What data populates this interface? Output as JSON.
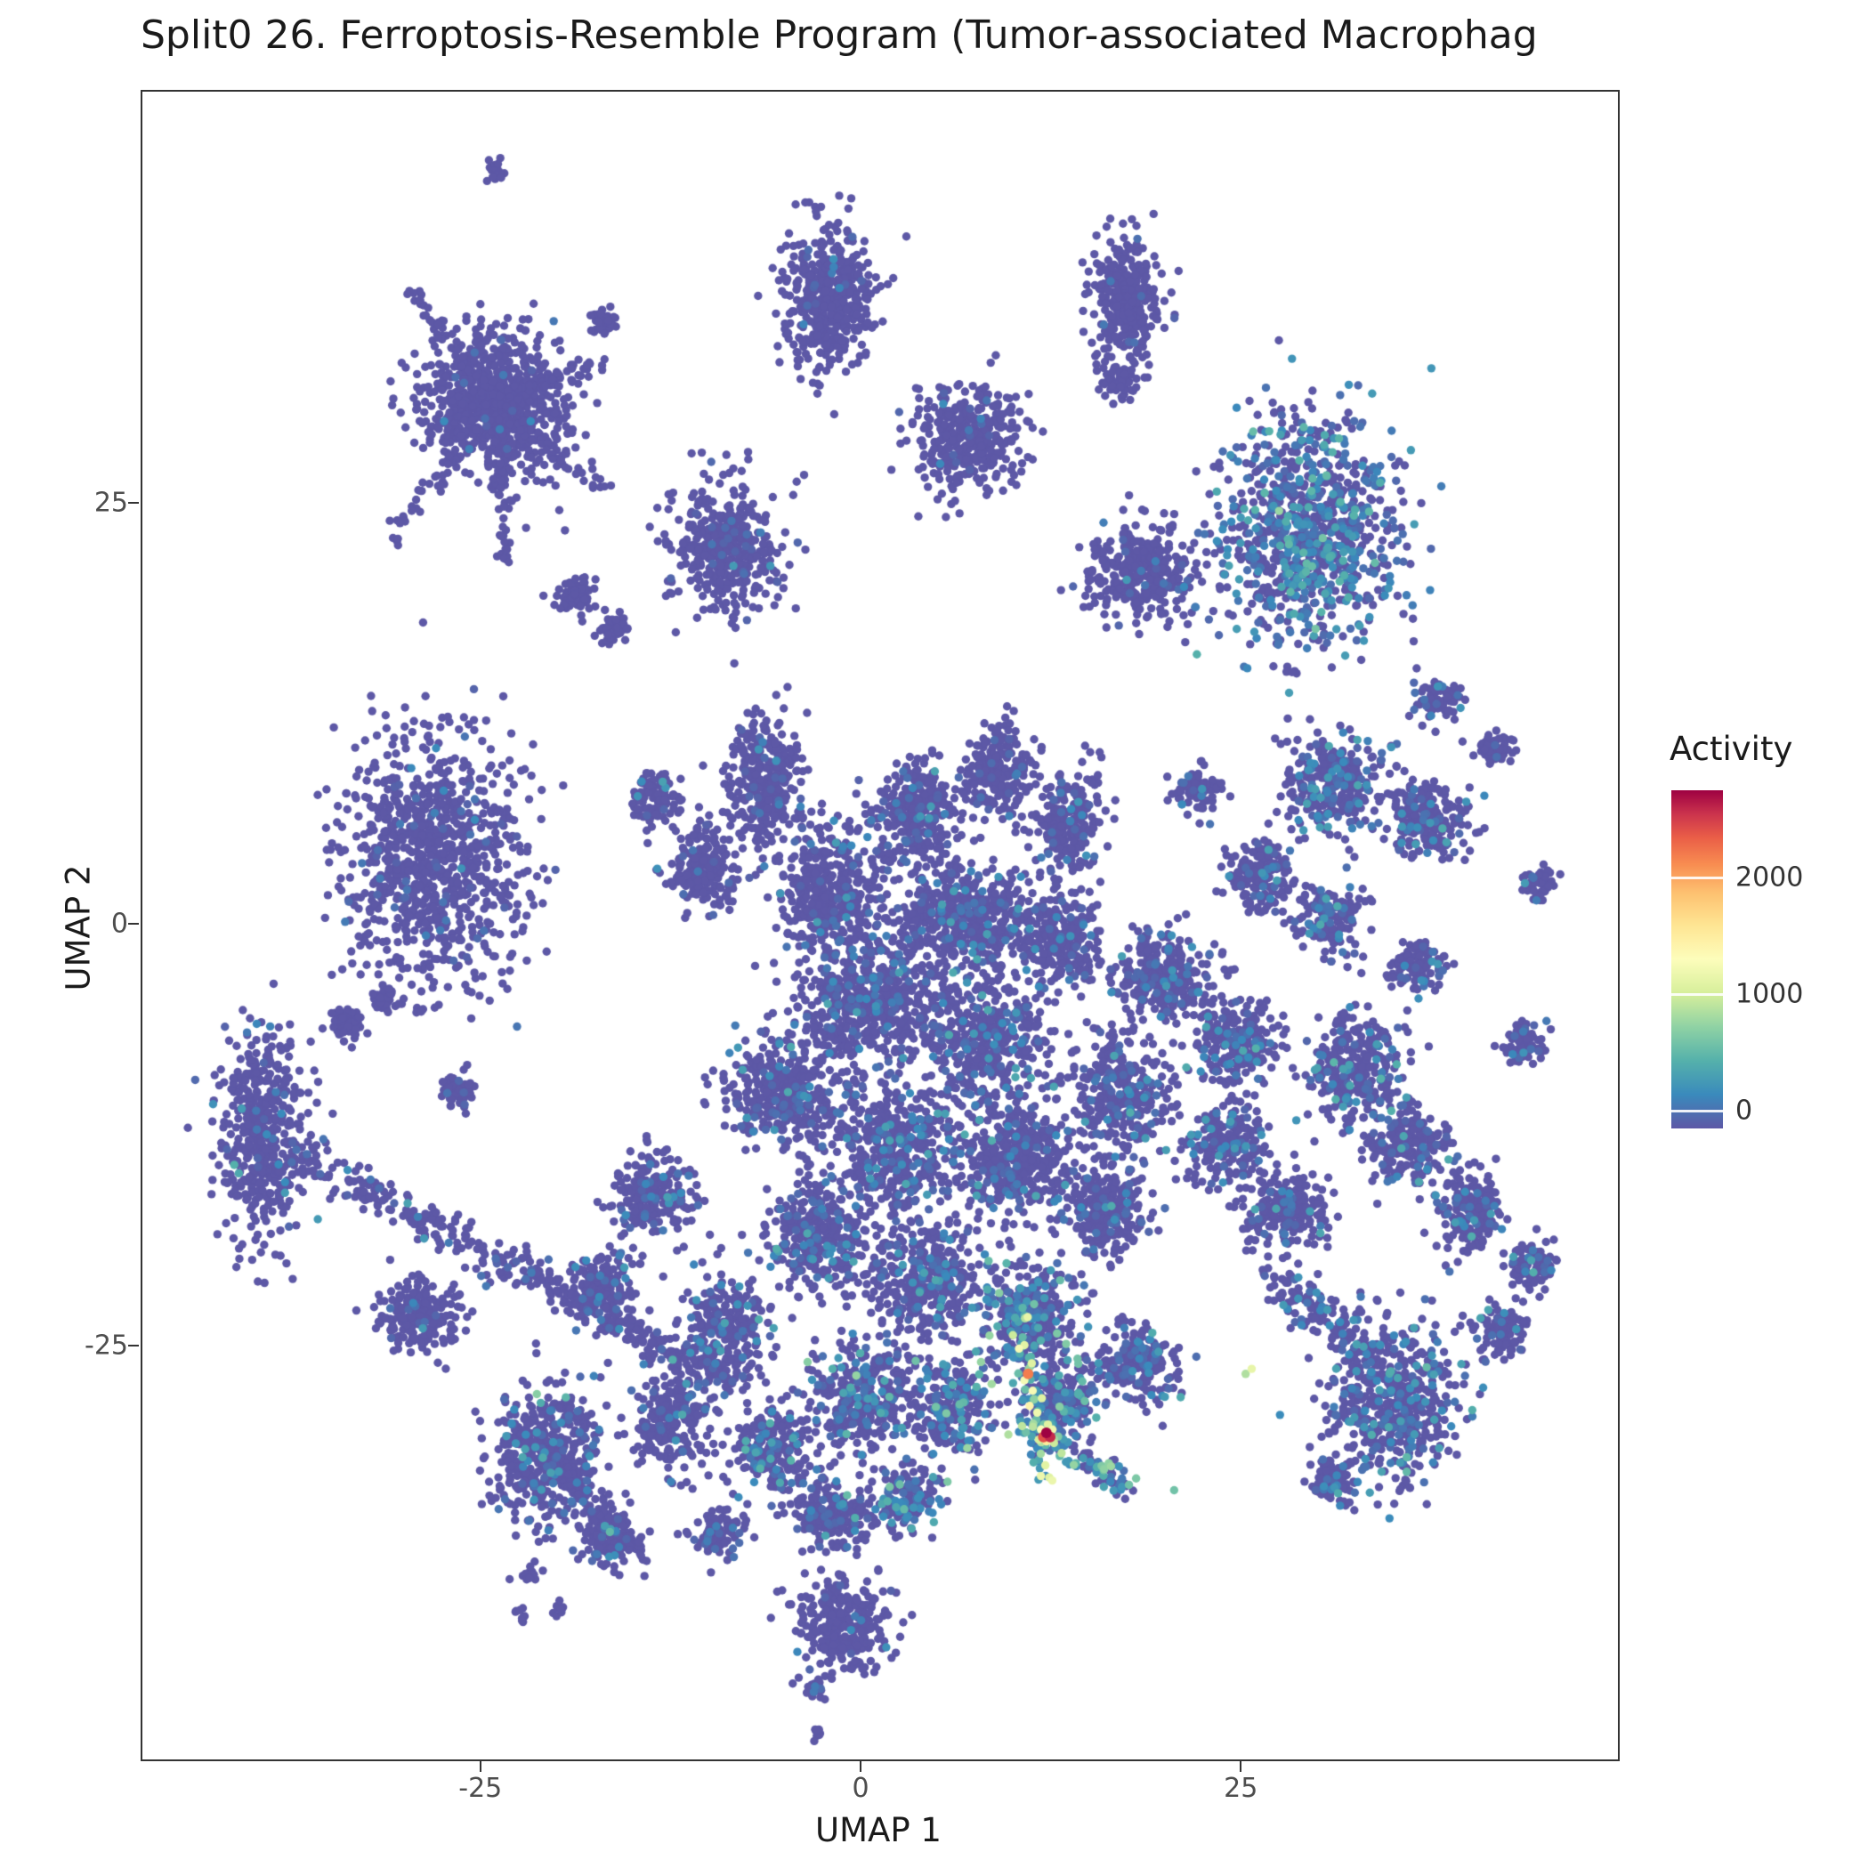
{
  "title": "Split0 26. Ferroptosis-Resemble Program (Tumor-associated Macrophag",
  "chart_data": {
    "type": "scatter",
    "subtype": "umap-embedding-feature-plot",
    "title": "Split0 26. Ferroptosis-Resemble Program (Tumor-associated Macrophag",
    "xlabel": "UMAP 1",
    "ylabel": "UMAP 2",
    "x_ticks": [
      -25,
      0,
      25
    ],
    "y_ticks": [
      -25,
      0,
      25
    ],
    "xlim": [
      -47.3,
      49.6
    ],
    "ylim": [
      -49.5,
      49.5
    ],
    "grid": false,
    "legend": {
      "title": "Activity",
      "position": "right",
      "ticks": [
        0,
        1000,
        2000
      ],
      "bar_domain": [
        -150,
        2750
      ],
      "point_color_domain": [
        0,
        2600
      ]
    },
    "colormap_stops": [
      [
        0.0,
        "#5d58a6"
      ],
      [
        0.1,
        "#3a8abc"
      ],
      [
        0.2,
        "#55b1ab"
      ],
      [
        0.3,
        "#8fd2a4"
      ],
      [
        0.4,
        "#d7ef9b"
      ],
      [
        0.5,
        "#fdfdbb"
      ],
      [
        0.6,
        "#fee593"
      ],
      [
        0.7,
        "#fdbf6f"
      ],
      [
        0.78,
        "#f88d51"
      ],
      [
        0.86,
        "#ea5e47"
      ],
      [
        0.93,
        "#cb334d"
      ],
      [
        1.0,
        "#9e0142"
      ]
    ],
    "cluster_fields": [
      "cx",
      "cy",
      "rx",
      "ry",
      "n",
      "p_active",
      "activity_mean"
    ],
    "clusters": [
      [
        -24.0,
        44.8,
        0.5,
        0.5,
        18,
        0,
        0
      ],
      [
        -24.2,
        31.0,
        4.2,
        3.8,
        800,
        0.02,
        180
      ],
      [
        -17.0,
        35.8,
        0.8,
        0.7,
        45,
        0,
        0
      ],
      [
        -2.2,
        37.5,
        2.6,
        3.9,
        480,
        0.03,
        160
      ],
      [
        17.3,
        37.0,
        2.1,
        3.4,
        320,
        0.03,
        160
      ],
      [
        16.8,
        32.3,
        1.0,
        0.9,
        60,
        0,
        0
      ],
      [
        7.0,
        28.8,
        3.2,
        2.8,
        380,
        0.04,
        180
      ],
      [
        -8.9,
        22.3,
        3.4,
        3.6,
        420,
        0.05,
        180
      ],
      [
        -18.8,
        19.5,
        1.2,
        1.0,
        70,
        0,
        0
      ],
      [
        -16.3,
        17.6,
        0.9,
        0.8,
        45,
        0,
        0
      ],
      [
        18.4,
        20.9,
        3.2,
        2.4,
        340,
        0.05,
        200
      ],
      [
        29.5,
        23.3,
        5.2,
        6.0,
        950,
        0.45,
        320
      ],
      [
        37.9,
        13.4,
        1.4,
        1.1,
        80,
        0.1,
        220
      ],
      [
        41.5,
        10.5,
        1.2,
        0.9,
        60,
        0.1,
        220
      ],
      [
        31.0,
        8.3,
        3.4,
        2.6,
        320,
        0.18,
        260
      ],
      [
        37.3,
        6.3,
        2.4,
        2.1,
        220,
        0.15,
        250
      ],
      [
        21.9,
        8.2,
        1.5,
        1.3,
        90,
        0.1,
        220
      ],
      [
        26.0,
        3.0,
        2.0,
        1.8,
        160,
        0.12,
        240
      ],
      [
        30.6,
        0.4,
        2.0,
        1.8,
        160,
        0.15,
        250
      ],
      [
        36.5,
        -2.5,
        1.6,
        1.4,
        100,
        0.12,
        240
      ],
      [
        44.4,
        2.5,
        1.1,
        0.8,
        55,
        0.05,
        200
      ],
      [
        -28.3,
        3.8,
        5.2,
        6.6,
        950,
        0.04,
        180
      ],
      [
        -33.8,
        -5.8,
        1.1,
        0.9,
        55,
        0,
        0
      ],
      [
        -31.3,
        -4.3,
        0.8,
        0.7,
        35,
        0,
        0
      ],
      [
        -26.7,
        -9.8,
        1.1,
        0.9,
        60,
        0.05,
        180
      ],
      [
        -39.5,
        -12.5,
        2.6,
        5.6,
        480,
        0.08,
        220
      ],
      [
        -29.3,
        -23.0,
        2.3,
        1.9,
        210,
        0.06,
        200
      ],
      [
        -20.8,
        -31.5,
        3.2,
        3.9,
        470,
        0.12,
        300
      ],
      [
        -16.6,
        -36.4,
        1.9,
        1.5,
        130,
        0.1,
        280
      ],
      [
        -21.7,
        -38.5,
        0.5,
        0.5,
        14,
        0,
        0
      ],
      [
        -22.4,
        -41.0,
        0.4,
        0.4,
        9,
        0,
        0
      ],
      [
        -19.9,
        -40.6,
        0.4,
        0.4,
        9,
        0,
        0
      ],
      [
        -6.5,
        8.5,
        2.4,
        3.4,
        320,
        0.06,
        200
      ],
      [
        -10.5,
        3.5,
        2.0,
        2.4,
        190,
        0.06,
        200
      ],
      [
        -13.6,
        7.5,
        1.5,
        1.4,
        100,
        0.05,
        200
      ],
      [
        -2.0,
        2.0,
        2.9,
        3.8,
        430,
        0.08,
        210
      ],
      [
        3.5,
        6.5,
        2.4,
        2.9,
        320,
        0.08,
        210
      ],
      [
        9.0,
        9.0,
        2.0,
        2.4,
        230,
        0.07,
        200
      ],
      [
        13.6,
        6.0,
        2.0,
        2.9,
        230,
        0.08,
        210
      ],
      [
        6.5,
        0.5,
        3.9,
        2.9,
        470,
        0.12,
        230
      ],
      [
        13.0,
        -1.0,
        2.4,
        2.4,
        260,
        0.12,
        230
      ],
      [
        0.5,
        -4.5,
        4.4,
        3.4,
        520,
        0.12,
        230
      ],
      [
        8.0,
        -7.0,
        3.9,
        3.4,
        470,
        0.14,
        240
      ],
      [
        -5.0,
        -10.0,
        3.4,
        2.9,
        400,
        0.12,
        230
      ],
      [
        2.0,
        -13.5,
        3.9,
        3.4,
        440,
        0.15,
        250
      ],
      [
        10.0,
        -14.0,
        3.4,
        2.9,
        400,
        0.16,
        260
      ],
      [
        17.0,
        -10.0,
        2.9,
        3.4,
        340,
        0.16,
        260
      ],
      [
        16.0,
        -17.0,
        2.4,
        2.4,
        260,
        0.16,
        260
      ],
      [
        20.0,
        -3.0,
        2.9,
        2.4,
        300,
        0.14,
        250
      ],
      [
        24.5,
        -7.0,
        2.4,
        2.2,
        230,
        0.15,
        250
      ],
      [
        24.0,
        -13.0,
        2.4,
        2.3,
        230,
        0.16,
        260
      ],
      [
        28.0,
        -17.0,
        2.4,
        2.0,
        210,
        0.16,
        260
      ],
      [
        -14.0,
        -16.0,
        2.4,
        2.4,
        230,
        0.1,
        220
      ],
      [
        -17.0,
        -21.5,
        2.0,
        1.9,
        170,
        0.08,
        220
      ],
      [
        -3.0,
        -18.5,
        2.9,
        2.9,
        320,
        0.15,
        260
      ],
      [
        4.0,
        -21.0,
        3.4,
        2.9,
        370,
        0.18,
        280
      ],
      [
        11.0,
        -23.0,
        2.9,
        2.7,
        340,
        0.3,
        380
      ],
      [
        -9.0,
        -24.0,
        2.4,
        2.9,
        260,
        0.15,
        280
      ],
      [
        -12.5,
        -29.5,
        2.4,
        2.4,
        230,
        0.12,
        260
      ],
      [
        -6.0,
        -31.0,
        2.4,
        2.4,
        230,
        0.2,
        300
      ],
      [
        0.0,
        -28.0,
        2.9,
        2.9,
        320,
        0.22,
        320
      ],
      [
        6.0,
        -28.5,
        2.4,
        2.4,
        270,
        0.3,
        380
      ],
      [
        13.0,
        -28.2,
        2.0,
        2.0,
        220,
        0.3,
        380
      ],
      [
        18.0,
        -26.0,
        2.4,
        2.0,
        210,
        0.2,
        300
      ],
      [
        -2.0,
        -35.0,
        2.4,
        1.9,
        210,
        0.18,
        300
      ],
      [
        3.0,
        -34.0,
        2.0,
        1.7,
        170,
        0.25,
        330
      ],
      [
        -9.5,
        -36.0,
        1.5,
        1.4,
        100,
        0.1,
        250
      ],
      [
        -1.5,
        -41.5,
        2.8,
        2.8,
        300,
        0.05,
        200
      ],
      [
        -2.9,
        -45.3,
        0.6,
        0.5,
        16,
        0.2,
        350
      ],
      [
        -3.1,
        -48.0,
        0.4,
        0.4,
        9,
        0,
        0
      ],
      [
        34.8,
        -28.3,
        3.8,
        4.2,
        560,
        0.2,
        300
      ],
      [
        31.0,
        -33.0,
        1.5,
        1.3,
        90,
        0.15,
        280
      ],
      [
        43.5,
        -7.0,
        1.5,
        1.1,
        80,
        0.1,
        240
      ],
      [
        32.5,
        -8.5,
        2.9,
        2.9,
        320,
        0.18,
        270
      ],
      [
        36.0,
        -13.0,
        2.4,
        2.0,
        210,
        0.16,
        260
      ],
      [
        40.0,
        -17.0,
        2.0,
        2.4,
        190,
        0.15,
        260
      ],
      [
        44.0,
        -20.0,
        1.5,
        1.4,
        100,
        0.12,
        250
      ],
      [
        42.0,
        -24.0,
        1.5,
        1.4,
        100,
        0.12,
        250
      ]
    ],
    "streak_fields": [
      "x1",
      "y1",
      "x2",
      "y2",
      "jitter",
      "n",
      "p_active",
      "activity_mean"
    ],
    "streaks": [
      [
        -37.0,
        -13.5,
        -9.0,
        -27.0,
        1.1,
        430,
        0.1,
        250
      ],
      [
        -24.2,
        31.0,
        -31.5,
        22.5,
        0.6,
        60,
        0,
        0
      ],
      [
        -24.2,
        31.0,
        -23.5,
        21.2,
        0.6,
        60,
        0,
        0
      ],
      [
        -24.2,
        31.0,
        -16.6,
        25.5,
        0.6,
        55,
        0,
        0
      ],
      [
        -24.2,
        31.0,
        -29.5,
        37.5,
        0.6,
        55,
        0,
        0
      ],
      [
        -24.2,
        31.0,
        -17.0,
        33.5,
        0.6,
        50,
        0,
        0
      ],
      [
        10.3,
        -22.5,
        11.8,
        -32.5,
        0.8,
        75,
        0.85,
        750
      ],
      [
        12.5,
        -30.5,
        17.5,
        -33.5,
        0.7,
        85,
        0.5,
        450
      ],
      [
        -21.0,
        -31.0,
        -14.5,
        -37.5,
        0.9,
        120,
        0.12,
        280
      ],
      [
        27.0,
        -21.0,
        33.0,
        -25.0,
        1.2,
        120,
        0.2,
        300
      ]
    ],
    "hot_point_fields": [
      "x",
      "y",
      "activity"
    ],
    "hot_points": [
      [
        12.1,
        -30.1,
        2600
      ],
      [
        12.35,
        -30.35,
        2450
      ],
      [
        11.9,
        -30.35,
        2300
      ],
      [
        12.1,
        -30.6,
        1500
      ],
      [
        11.75,
        -29.9,
        1300
      ],
      [
        12.5,
        -29.9,
        1200
      ],
      [
        12.2,
        -29.6,
        1100
      ],
      [
        11.6,
        -30.5,
        1050
      ],
      [
        12.6,
        -30.7,
        1000
      ],
      [
        10.9,
        -26.6,
        2100
      ],
      [
        10.3,
        -25.1,
        1250
      ],
      [
        9.9,
        -24.3,
        1000
      ],
      [
        10.7,
        -23.3,
        900
      ],
      [
        11.2,
        -27.6,
        1250
      ],
      [
        11.0,
        -28.5,
        1400
      ],
      [
        11.5,
        -28.9,
        1200
      ],
      [
        10.5,
        -29.7,
        950
      ],
      [
        9.6,
        -30.2,
        900
      ],
      [
        13.1,
        -31.3,
        950
      ],
      [
        13.9,
        -32.0,
        800
      ],
      [
        8.5,
        -27.2,
        850
      ],
      [
        7.8,
        -25.9,
        800
      ],
      [
        25.6,
        -26.3,
        1150
      ],
      [
        25.2,
        -26.6,
        900
      ],
      [
        -0.4,
        -26.7,
        800
      ],
      [
        -3.6,
        -25.9,
        750
      ],
      [
        -21.4,
        -27.8,
        750
      ],
      [
        27.4,
        24.6,
        820
      ],
      [
        29.8,
        17.6,
        680
      ],
      [
        -41.3,
        -14.2,
        520
      ],
      [
        -41.0,
        -14.7,
        460
      ],
      [
        16.2,
        -31.9,
        780
      ],
      [
        18.0,
        -32.8,
        700
      ],
      [
        20.5,
        -33.5,
        650
      ],
      [
        6.9,
        -31.0,
        820
      ],
      [
        5.6,
        -33.0,
        700
      ],
      [
        1.8,
        -33.3,
        680
      ],
      [
        -1.0,
        -33.8,
        600
      ],
      [
        9.0,
        -21.8,
        750
      ],
      [
        8.3,
        -19.9,
        600
      ],
      [
        12.8,
        -24.2,
        700
      ],
      [
        14.2,
        -26.0,
        650
      ]
    ]
  }
}
